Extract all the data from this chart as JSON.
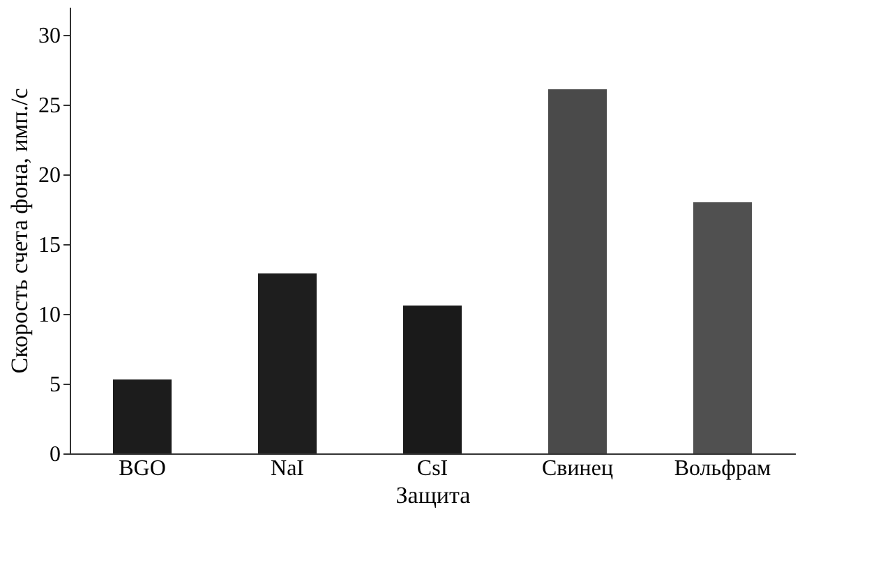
{
  "chart_data": {
    "type": "bar",
    "xlabel": "Защита",
    "ylabel": "Скорость счета фона, имп./с",
    "categories": [
      "BGO",
      "NaI",
      "CsI",
      "Свинец",
      "Вольфрам"
    ],
    "values": [
      5.3,
      12.9,
      10.6,
      26.1,
      18.0
    ],
    "colors": [
      "#1c1c1c",
      "#1e1e1e",
      "#1a1a1a",
      "#4a4a4a",
      "#505050"
    ],
    "ylim": [
      0,
      32
    ],
    "yticks": [
      0,
      5,
      10,
      15,
      20,
      25,
      30
    ],
    "grid": false
  }
}
